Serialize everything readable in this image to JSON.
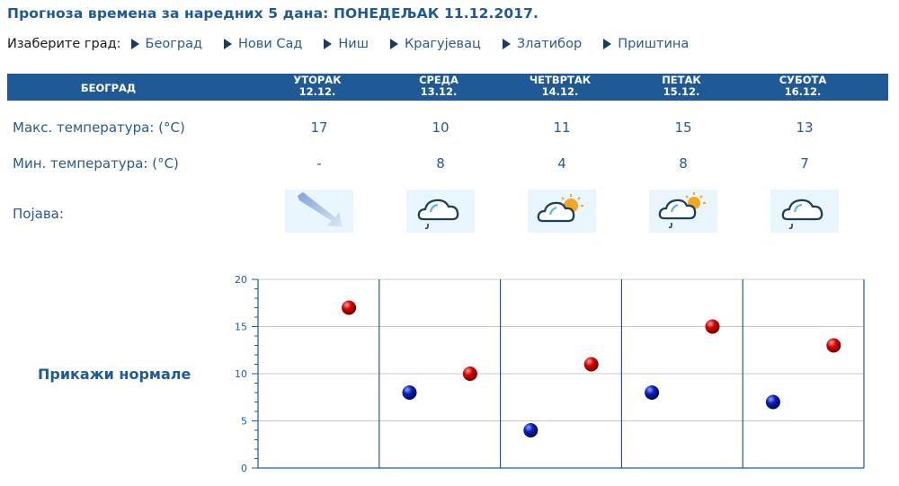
{
  "page": {
    "title": "Прогноза времена за наредних 5 дана: ПОНЕДЕЉАК  11.12.2017."
  },
  "city_select": {
    "label": "Изаберите град:",
    "cities": [
      "Београд",
      "Нови Сад",
      "Ниш",
      "Крагујевац",
      "Златибор",
      "Приштина"
    ]
  },
  "table": {
    "city_header": "БЕОГРАД",
    "days": [
      {
        "name": "УТОРАК",
        "date": "12.12."
      },
      {
        "name": "СРЕДА",
        "date": "13.12."
      },
      {
        "name": "ЧЕТВРТАК",
        "date": "14.12."
      },
      {
        "name": "ПЕТАК",
        "date": "15.12."
      },
      {
        "name": "СУБОТА",
        "date": "16.12."
      }
    ],
    "max_label": "Макс. температура: (°C)",
    "min_label": "Мин. температура: (°C)",
    "phenomenon_label": "Појава:",
    "max_values": [
      "17",
      "10",
      "11",
      "15",
      "13"
    ],
    "min_values": [
      "-",
      "8",
      "4",
      "8",
      "7"
    ],
    "phenomena_icons": [
      "wind-arrow-icon",
      "cloud-rain-icon",
      "sun-cloud-icon",
      "sun-cloud-rain-icon",
      "cloud-rain-icon"
    ]
  },
  "normals_link": "Прикажи нормале",
  "colors": {
    "header_bg": "#1f5a96",
    "text": "#2a5a8c",
    "max_dot": "#cc0000",
    "min_dot": "#0a1fb4",
    "grid": "#c8c8c8",
    "divider": "#1f5a96"
  },
  "chart_data": {
    "type": "scatter",
    "categories": [
      "УТОРАК 12.12.",
      "СРЕДА 13.12.",
      "ЧЕТВРТАК 14.12.",
      "ПЕТАК 15.12.",
      "СУБОТА 16.12."
    ],
    "series": [
      {
        "name": "Макс. температура",
        "values": [
          17,
          10,
          11,
          15,
          13
        ]
      },
      {
        "name": "Мин. температура",
        "values": [
          null,
          8,
          4,
          8,
          7
        ]
      }
    ],
    "ylim": [
      0,
      20
    ],
    "yticks": [
      0,
      5,
      10,
      15,
      20
    ],
    "grid": true,
    "title": "",
    "xlabel": "",
    "ylabel": ""
  }
}
